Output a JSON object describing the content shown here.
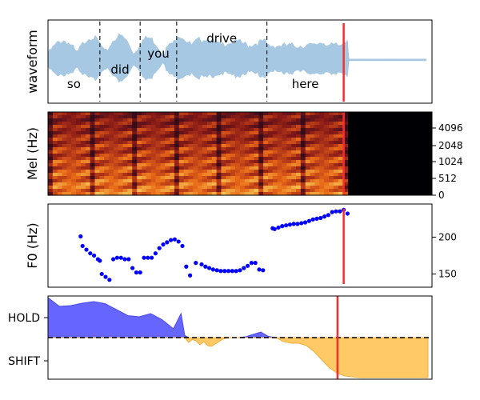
{
  "chart_data": [
    {
      "type": "line",
      "panel": "waveform",
      "ylabel": "waveform",
      "words": [
        {
          "text": "so",
          "start": 0.0,
          "end": 0.135
        },
        {
          "text": "did",
          "start": 0.135,
          "end": 0.24
        },
        {
          "text": "you",
          "start": 0.24,
          "end": 0.335
        },
        {
          "text": "drive",
          "start": 0.335,
          "end": 0.57
        },
        {
          "text": "here",
          "start": 0.57,
          "end": 0.77
        }
      ],
      "boundaries": [
        0.135,
        0.24,
        0.335,
        0.57
      ],
      "cursor": 0.77,
      "speech_end": 0.78,
      "xlim": [
        0,
        1
      ],
      "color": "#a6c8e2",
      "cursor_color": "#ff2b2b"
    },
    {
      "type": "heatmap",
      "panel": "mel",
      "ylabel": "Mel (Hz)",
      "yticks": [
        "0",
        "512",
        "1024",
        "2048",
        "4096"
      ],
      "cursor": 0.77,
      "speech_end": 0.78,
      "colormap": "magma"
    },
    {
      "type": "scatter",
      "panel": "f0",
      "ylabel": "F0 (Hz)",
      "ylim": [
        132,
        245
      ],
      "yticks": [
        150,
        200
      ],
      "x": [
        0.085,
        0.09,
        0.1,
        0.11,
        0.12,
        0.13,
        0.135,
        0.14,
        0.15,
        0.16,
        0.17,
        0.18,
        0.19,
        0.2,
        0.21,
        0.22,
        0.23,
        0.24,
        0.25,
        0.26,
        0.27,
        0.28,
        0.29,
        0.3,
        0.31,
        0.32,
        0.33,
        0.34,
        0.35,
        0.36,
        0.37,
        0.385,
        0.4,
        0.41,
        0.42,
        0.43,
        0.44,
        0.45,
        0.46,
        0.47,
        0.48,
        0.49,
        0.5,
        0.51,
        0.52,
        0.53,
        0.54,
        0.55,
        0.56,
        0.585,
        0.59,
        0.6,
        0.61,
        0.62,
        0.63,
        0.64,
        0.65,
        0.66,
        0.67,
        0.68,
        0.69,
        0.7,
        0.71,
        0.72,
        0.73,
        0.74,
        0.75,
        0.76,
        0.77,
        0.78
      ],
      "y": [
        201,
        188,
        183,
        178,
        175,
        170,
        168,
        150,
        146,
        142,
        170,
        172,
        172,
        170,
        170,
        158,
        152,
        152,
        172,
        172,
        172,
        178,
        185,
        190,
        193,
        196,
        197,
        194,
        188,
        160,
        148,
        165,
        163,
        160,
        158,
        156,
        155,
        154,
        154,
        154,
        154,
        154,
        155,
        158,
        161,
        165,
        165,
        156,
        155,
        212,
        211,
        213,
        215,
        216,
        217,
        218,
        218,
        219,
        220,
        222,
        224,
        225,
        226,
        228,
        230,
        234,
        235,
        235,
        237,
        232
      ],
      "cursor": 0.77,
      "color": "#0000ff",
      "cursor_color": "#ff2b2b"
    },
    {
      "type": "area",
      "panel": "turn_taking",
      "yticks": [
        "HOLD",
        "SHIFT"
      ],
      "x": [
        0.0,
        0.03,
        0.06,
        0.09,
        0.12,
        0.15,
        0.18,
        0.21,
        0.24,
        0.27,
        0.3,
        0.33,
        0.35,
        0.36,
        0.37,
        0.38,
        0.39,
        0.4,
        0.41,
        0.42,
        0.43,
        0.44,
        0.45,
        0.46,
        0.47,
        0.48,
        0.5,
        0.52,
        0.54,
        0.56,
        0.58,
        0.6,
        0.62,
        0.64,
        0.66,
        0.68,
        0.7,
        0.72,
        0.74,
        0.76,
        0.78,
        0.8,
        0.82,
        0.84,
        0.86,
        0.88,
        0.9,
        0.92,
        0.94,
        0.96,
        0.98,
        1.0
      ],
      "y": [
        1.0,
        0.78,
        0.8,
        0.86,
        0.9,
        0.85,
        0.7,
        0.55,
        0.52,
        0.6,
        0.45,
        0.22,
        0.6,
        0.05,
        -0.12,
        -0.05,
        -0.08,
        -0.18,
        -0.1,
        -0.2,
        -0.22,
        -0.16,
        -0.1,
        -0.04,
        -0.01,
        0.0,
        0.0,
        0.02,
        0.08,
        0.14,
        0.03,
        0.0,
        -0.1,
        -0.14,
        -0.14,
        -0.2,
        -0.35,
        -0.55,
        -0.75,
        -0.88,
        -0.96,
        -0.98,
        -1.0,
        -1.0,
        -1.0,
        -1.0,
        -1.0,
        -1.0,
        -1.0,
        -1.0,
        -1.0,
        -1.0
      ],
      "threshold": 0,
      "cursor": 0.77,
      "hold_color": "#6666ff",
      "shift_color": "#ffc966",
      "cursor_color": "#ff2b2b"
    }
  ]
}
